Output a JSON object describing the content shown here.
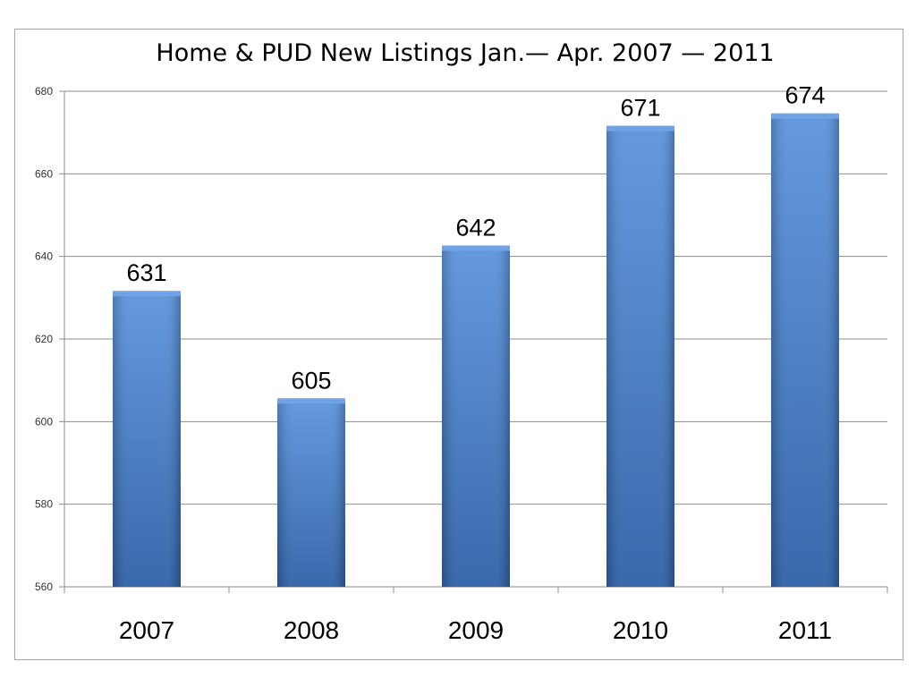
{
  "chart_data": {
    "type": "bar",
    "title": "Home & PUD New Listings Jan.— Apr. 2007 — 2011",
    "xlabel": "",
    "ylabel": "",
    "categories": [
      "2007",
      "2008",
      "2009",
      "2010",
      "2011"
    ],
    "values": [
      631,
      605,
      642,
      671,
      674
    ],
    "data_labels": [
      "631",
      "605",
      "642",
      "671",
      "674"
    ],
    "ylim": [
      560,
      680
    ],
    "yticks": [
      560,
      580,
      600,
      620,
      640,
      660,
      680
    ],
    "ytick_labels": [
      "560",
      "580",
      "600",
      "620",
      "640",
      "660",
      "680"
    ],
    "grid": true,
    "legend": "none",
    "colors": {
      "bar": "#3a75c4",
      "bar_top": "#6fa3e6",
      "bar_bottom": "#2a5ea8",
      "grid": "#8c8c8c",
      "axis": "#8c8c8c"
    }
  }
}
